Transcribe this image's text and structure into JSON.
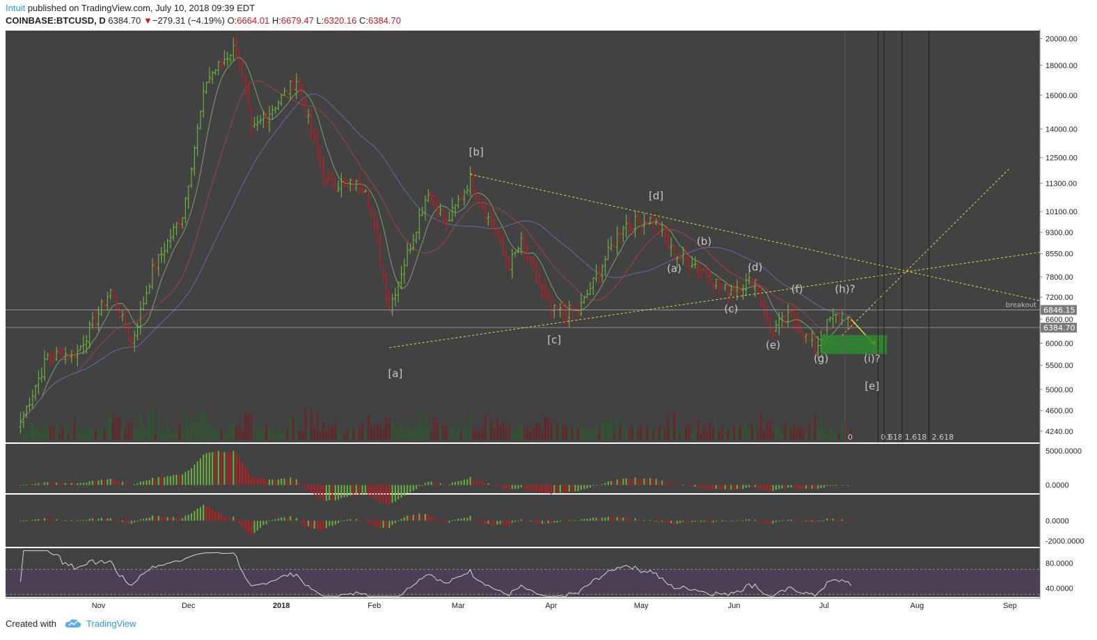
{
  "header": {
    "author": "Intuit",
    "published": "published on TradingView.com, July 10, 2018 09:39 EDT",
    "symbol": "COINBASE:BTCUSD, D",
    "price": "6384.70",
    "arrow": "▼",
    "change": "−279.31 (−4.19%)",
    "o_label": "O:",
    "o_val": "6664.01",
    "h_label": "H:",
    "h_val": "6679.47",
    "l_label": "L:",
    "l_val": "6320.16",
    "c_label": "C:",
    "c_val": "6384.70"
  },
  "footer": {
    "created_with": "Created with",
    "brand": "TradingView"
  },
  "colors": {
    "background": "#424242",
    "up": "#6bb33f",
    "down": "#c8191e",
    "neutral": "#9e9e9e",
    "rsi_band": "#4b3f56",
    "trend": "#e2e24a",
    "target_box": "#2f8a2f"
  },
  "chart_data": [
    {
      "type": "candlestick",
      "name": "price",
      "log_scale": true,
      "ylim": [
        4100,
        20200
      ],
      "y_ticks": [
        "20000.00",
        "18000.00",
        "16000.00",
        "14000.00",
        "12500.00",
        "11300.00",
        "10100.00",
        "9300.00",
        "8550.00",
        "7800.00",
        "7200.00",
        "6600.00",
        "6000.00",
        "5500.00",
        "5000.00",
        "4600.00",
        "4240.00"
      ],
      "last_price_label": "6384.70",
      "line_price_label": "6846.15",
      "breakout_label": "breakout",
      "x_labels": [
        "Nov",
        "Dec",
        "2018",
        "Feb",
        "Mar",
        "Apr",
        "May",
        "Jun",
        "Jul",
        "Aug",
        "Sep"
      ],
      "key_points": [
        {
          "date": "2017-10-06",
          "close": 4400
        },
        {
          "date": "2017-10-15",
          "close": 5700
        },
        {
          "date": "2017-10-25",
          "close": 5800
        },
        {
          "date": "2017-11-05",
          "close": 7400
        },
        {
          "date": "2017-11-12",
          "close": 6000
        },
        {
          "date": "2017-11-19",
          "close": 8000
        },
        {
          "date": "2017-11-29",
          "close": 10000
        },
        {
          "date": "2017-12-07",
          "close": 17000
        },
        {
          "date": "2017-12-17",
          "close": 19500
        },
        {
          "date": "2017-12-22",
          "close": 13800
        },
        {
          "date": "2018-01-06",
          "close": 17000
        },
        {
          "date": "2018-01-16",
          "close": 11300
        },
        {
          "date": "2018-01-29",
          "close": 11200
        },
        {
          "date": "2018-02-06",
          "close": 6900
        },
        {
          "date": "2018-02-19",
          "close": 11000
        },
        {
          "date": "2018-02-25",
          "close": 9600
        },
        {
          "date": "2018-03-05",
          "close": 11500
        },
        {
          "date": "2018-03-18",
          "close": 8200
        },
        {
          "date": "2018-03-22",
          "close": 8900
        },
        {
          "date": "2018-04-01",
          "close": 6800
        },
        {
          "date": "2018-04-10",
          "close": 6800
        },
        {
          "date": "2018-04-25",
          "close": 9600
        },
        {
          "date": "2018-05-05",
          "close": 9800
        },
        {
          "date": "2018-05-12",
          "close": 8500
        },
        {
          "date": "2018-05-18",
          "close": 8300
        },
        {
          "date": "2018-05-29",
          "close": 7400
        },
        {
          "date": "2018-06-08",
          "close": 7700
        },
        {
          "date": "2018-06-13",
          "close": 6300
        },
        {
          "date": "2018-06-20",
          "close": 6700
        },
        {
          "date": "2018-06-28",
          "close": 5850
        },
        {
          "date": "2018-07-03",
          "close": 6600
        },
        {
          "date": "2018-07-08",
          "close": 6750
        },
        {
          "date": "2018-07-10",
          "close": 6384.7
        }
      ],
      "wave_labels": [
        "[a]",
        "[b]",
        "[c]",
        "[d]",
        "[e]",
        "(a)",
        "(b)",
        "(c)",
        "(d)",
        "(e)",
        "(f)",
        "(g)",
        "(h)?",
        "(i)?"
      ],
      "fib_labels": [
        "0",
        "0.618",
        "1",
        "1.618",
        "2.618"
      ],
      "series": [
        {
          "name": "volume",
          "type": "bar"
        },
        {
          "name": "SMA short",
          "type": "line"
        },
        {
          "name": "SMA mid",
          "type": "line"
        },
        {
          "name": "SMA long",
          "type": "line"
        }
      ]
    },
    {
      "type": "bar",
      "name": "histogram oscillator 1",
      "ylim": [
        -1200,
        6000
      ],
      "y_ticks": [
        "5000.0000",
        "0.0000"
      ]
    },
    {
      "type": "bar",
      "name": "histogram oscillator 2",
      "ylim": [
        -2600,
        2600
      ],
      "y_ticks": [
        "0.0000",
        "-2000.0000"
      ]
    },
    {
      "type": "line",
      "name": "RSI",
      "ylim": [
        26,
        104
      ],
      "bands": [
        70,
        30
      ],
      "y_ticks": [
        "80.0000",
        "40.0000"
      ]
    }
  ]
}
